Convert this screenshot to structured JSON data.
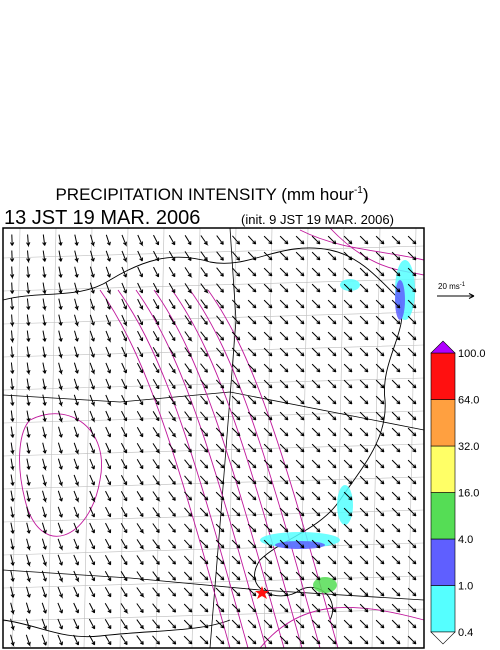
{
  "header": {
    "title": "PRECIPITATION INTENSITY (mm hour",
    "title_exponent": "-1",
    "title_close": ")",
    "valid_time": "13 JST 19 MAR. 2006",
    "init_time": "(init. 9 JST 19 MAR. 2006)"
  },
  "reference_vector": {
    "label": "20 ms",
    "exponent": "-1"
  },
  "colorbar": {
    "levels": [
      "0.4",
      "1.0",
      "4.0",
      "16.0",
      "32.0",
      "64.0",
      "100.0"
    ],
    "colors": [
      "#55ffff",
      "#5f5fff",
      "#55dd55",
      "#ffff66",
      "#ffa040",
      "#ff1010"
    ],
    "over_color": "#b000ff",
    "under_color": "#ffffff"
  }
}
